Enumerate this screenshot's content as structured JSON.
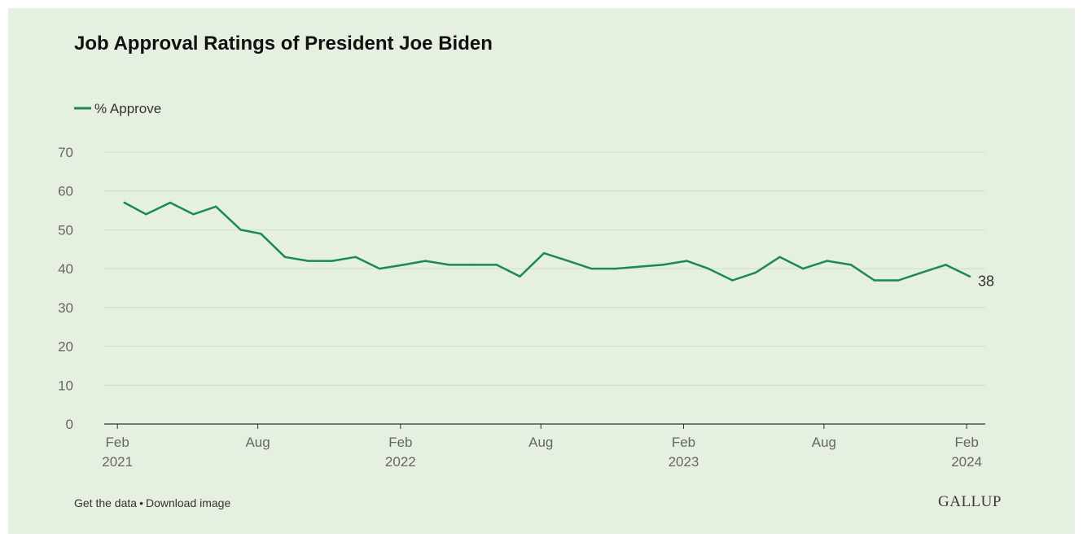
{
  "chart_data": {
    "type": "line",
    "title": "Job Approval Ratings of President Joe Biden",
    "series": [
      {
        "name": "% Approve",
        "color": "#1b8a4f",
        "points": [
          [
            "2021-02-10",
            57
          ],
          [
            "2021-03-10",
            54
          ],
          [
            "2021-04-10",
            57
          ],
          [
            "2021-05-10",
            54
          ],
          [
            "2021-06-08",
            56
          ],
          [
            "2021-07-10",
            50
          ],
          [
            "2021-08-05",
            49
          ],
          [
            "2021-09-05",
            43
          ],
          [
            "2021-10-05",
            42
          ],
          [
            "2021-11-05",
            42
          ],
          [
            "2021-12-05",
            43
          ],
          [
            "2022-01-05",
            40
          ],
          [
            "2022-02-05",
            41
          ],
          [
            "2022-03-05",
            42
          ],
          [
            "2022-04-05",
            41
          ],
          [
            "2022-05-05",
            41
          ],
          [
            "2022-06-05",
            41
          ],
          [
            "2022-07-05",
            38
          ],
          [
            "2022-08-05",
            44
          ],
          [
            "2022-09-05",
            42
          ],
          [
            "2022-10-05",
            40
          ],
          [
            "2022-11-05",
            40
          ],
          [
            "2022-12-05",
            40.5
          ],
          [
            "2023-01-05",
            41
          ],
          [
            "2023-02-05",
            42
          ],
          [
            "2023-03-05",
            40
          ],
          [
            "2023-04-05",
            37
          ],
          [
            "2023-05-05",
            39
          ],
          [
            "2023-06-05",
            43
          ],
          [
            "2023-07-05",
            40
          ],
          [
            "2023-08-05",
            42
          ],
          [
            "2023-09-05",
            41
          ],
          [
            "2023-10-05",
            37
          ],
          [
            "2023-11-05",
            37
          ],
          [
            "2023-12-05",
            39
          ],
          [
            "2024-01-05",
            41
          ],
          [
            "2024-02-05",
            38
          ]
        ]
      }
    ],
    "last_value_label": "38",
    "ylim": [
      0,
      70
    ],
    "yticks": [
      "0",
      "10",
      "20",
      "30",
      "40",
      "50",
      "60",
      "70"
    ],
    "xlim": [
      "2021-01-15",
      "2024-02-25"
    ],
    "xticks": [
      {
        "date": "2021-02-01",
        "month": "Feb",
        "year": "2021"
      },
      {
        "date": "2021-08-01",
        "month": "Aug",
        "year": ""
      },
      {
        "date": "2022-02-01",
        "month": "Feb",
        "year": "2022"
      },
      {
        "date": "2022-08-01",
        "month": "Aug",
        "year": ""
      },
      {
        "date": "2023-02-01",
        "month": "Feb",
        "year": "2023"
      },
      {
        "date": "2023-08-01",
        "month": "Aug",
        "year": ""
      },
      {
        "date": "2024-02-01",
        "month": "Feb",
        "year": "2024"
      }
    ],
    "grid": true,
    "legend_position": "top-left"
  },
  "footer": {
    "get_data": "Get the data",
    "separator": "•",
    "download": "Download image"
  },
  "brand": "GALLUP",
  "colors": {
    "background": "#e5f0e1",
    "line": "#1b8a4f",
    "grid": "#cfdccb",
    "axis": "#333333",
    "tick_text": "#666666"
  }
}
